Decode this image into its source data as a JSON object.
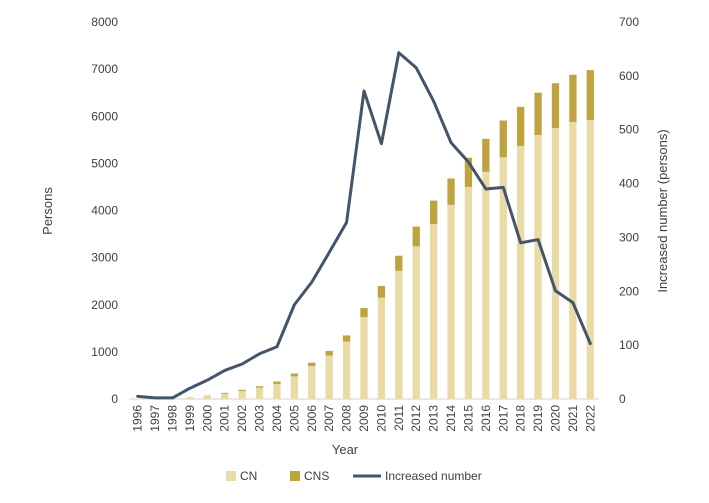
{
  "chart_data": {
    "type": "bar",
    "stacked": true,
    "categories": [
      "1996",
      "1997",
      "1998",
      "1999",
      "2000",
      "2001",
      "2002",
      "2003",
      "2004",
      "2005",
      "2006",
      "2007",
      "2008",
      "2009",
      "2010",
      "2011",
      "2012",
      "2013",
      "2014",
      "2015",
      "2016",
      "2017",
      "2018",
      "2019",
      "2020",
      "2021",
      "2022"
    ],
    "series": [
      {
        "name": "CN",
        "type": "bar",
        "axis": "left",
        "color": "#e8dba6",
        "values": [
          5,
          8,
          10,
          30,
          60,
          110,
          170,
          240,
          320,
          480,
          700,
          920,
          1220,
          1740,
          2150,
          2720,
          3240,
          3710,
          4120,
          4500,
          4820,
          5130,
          5370,
          5600,
          5750,
          5880,
          5920
        ]
      },
      {
        "name": "CNS",
        "type": "bar",
        "axis": "left",
        "color": "#bfa33f",
        "values": [
          0,
          0,
          0,
          5,
          10,
          20,
          25,
          30,
          50,
          60,
          70,
          100,
          130,
          190,
          250,
          320,
          420,
          500,
          560,
          620,
          700,
          780,
          830,
          900,
          950,
          1000,
          1060
        ]
      },
      {
        "name": "Increased number",
        "type": "line",
        "axis": "right",
        "color": "#44546a",
        "values": [
          5,
          2,
          2,
          20,
          35,
          53,
          65,
          84,
          97,
          175,
          217,
          272,
          328,
          572,
          474,
          643,
          615,
          553,
          476,
          440,
          390,
          393,
          290,
          296,
          201,
          179,
          103
        ]
      }
    ],
    "title": "",
    "xlabel": "Year",
    "ylabel": "Persons",
    "y2label": "Increased number (persons)",
    "ylim": [
      0,
      8000
    ],
    "y2lim": [
      0,
      700
    ],
    "yticks": [
      0,
      1000,
      2000,
      3000,
      4000,
      5000,
      6000,
      7000,
      8000
    ],
    "y2ticks": [
      0,
      100,
      200,
      300,
      400,
      500,
      600,
      700
    ],
    "grid": false,
    "legend": {
      "position": "bottom",
      "entries": [
        "CN",
        "CNS",
        "Increased number"
      ]
    }
  }
}
